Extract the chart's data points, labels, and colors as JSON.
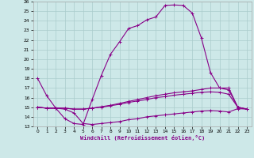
{
  "xlabel": "Windchill (Refroidissement éolien,°C)",
  "xlim": [
    -0.5,
    23.5
  ],
  "ylim": [
    13,
    26
  ],
  "xticks": [
    0,
    1,
    2,
    3,
    4,
    5,
    6,
    7,
    8,
    9,
    10,
    11,
    12,
    13,
    14,
    15,
    16,
    17,
    18,
    19,
    20,
    21,
    22,
    23
  ],
  "yticks": [
    13,
    14,
    15,
    16,
    17,
    18,
    19,
    20,
    21,
    22,
    23,
    24,
    25,
    26
  ],
  "bg_color": "#cde8e8",
  "grid_color": "#aacccc",
  "line_color": "#880088",
  "line1_x": [
    0,
    1,
    2,
    3,
    4,
    5,
    6,
    7,
    8,
    9,
    10,
    11,
    12,
    13,
    14,
    15,
    16,
    17,
    18,
    19,
    20,
    21,
    22,
    23
  ],
  "line1_y": [
    18.0,
    16.2,
    14.9,
    13.8,
    13.3,
    13.2,
    15.8,
    18.3,
    20.5,
    21.8,
    23.2,
    23.5,
    24.1,
    24.4,
    25.6,
    25.65,
    25.6,
    24.8,
    22.2,
    18.6,
    17.0,
    17.0,
    15.0,
    14.8
  ],
  "line2_x": [
    0,
    1,
    2,
    3,
    4,
    5,
    6,
    7,
    8,
    9,
    10,
    11,
    12,
    13,
    14,
    15,
    16,
    17,
    18,
    19,
    20,
    21,
    22,
    23
  ],
  "line2_y": [
    15.0,
    14.9,
    14.9,
    14.9,
    14.8,
    14.8,
    14.9,
    15.05,
    15.2,
    15.4,
    15.6,
    15.8,
    16.0,
    16.2,
    16.35,
    16.5,
    16.6,
    16.7,
    16.85,
    17.0,
    17.0,
    16.8,
    15.0,
    14.8
  ],
  "line3_x": [
    0,
    1,
    2,
    3,
    4,
    5,
    6,
    7,
    8,
    9,
    10,
    11,
    12,
    13,
    14,
    15,
    16,
    17,
    18,
    19,
    20,
    21,
    22,
    23
  ],
  "line3_y": [
    15.0,
    14.9,
    14.9,
    14.9,
    14.8,
    14.8,
    14.9,
    15.0,
    15.15,
    15.3,
    15.5,
    15.65,
    15.8,
    16.0,
    16.1,
    16.25,
    16.35,
    16.45,
    16.55,
    16.6,
    16.55,
    16.35,
    15.0,
    14.8
  ],
  "line4_x": [
    0,
    1,
    2,
    3,
    4,
    5,
    6,
    7,
    8,
    9,
    10,
    11,
    12,
    13,
    14,
    15,
    16,
    17,
    18,
    19,
    20,
    21,
    22,
    23
  ],
  "line4_y": [
    15.0,
    14.9,
    14.9,
    14.8,
    14.4,
    13.3,
    13.2,
    13.3,
    13.4,
    13.5,
    13.7,
    13.8,
    14.0,
    14.1,
    14.2,
    14.3,
    14.4,
    14.5,
    14.6,
    14.65,
    14.6,
    14.5,
    14.85,
    14.8
  ]
}
